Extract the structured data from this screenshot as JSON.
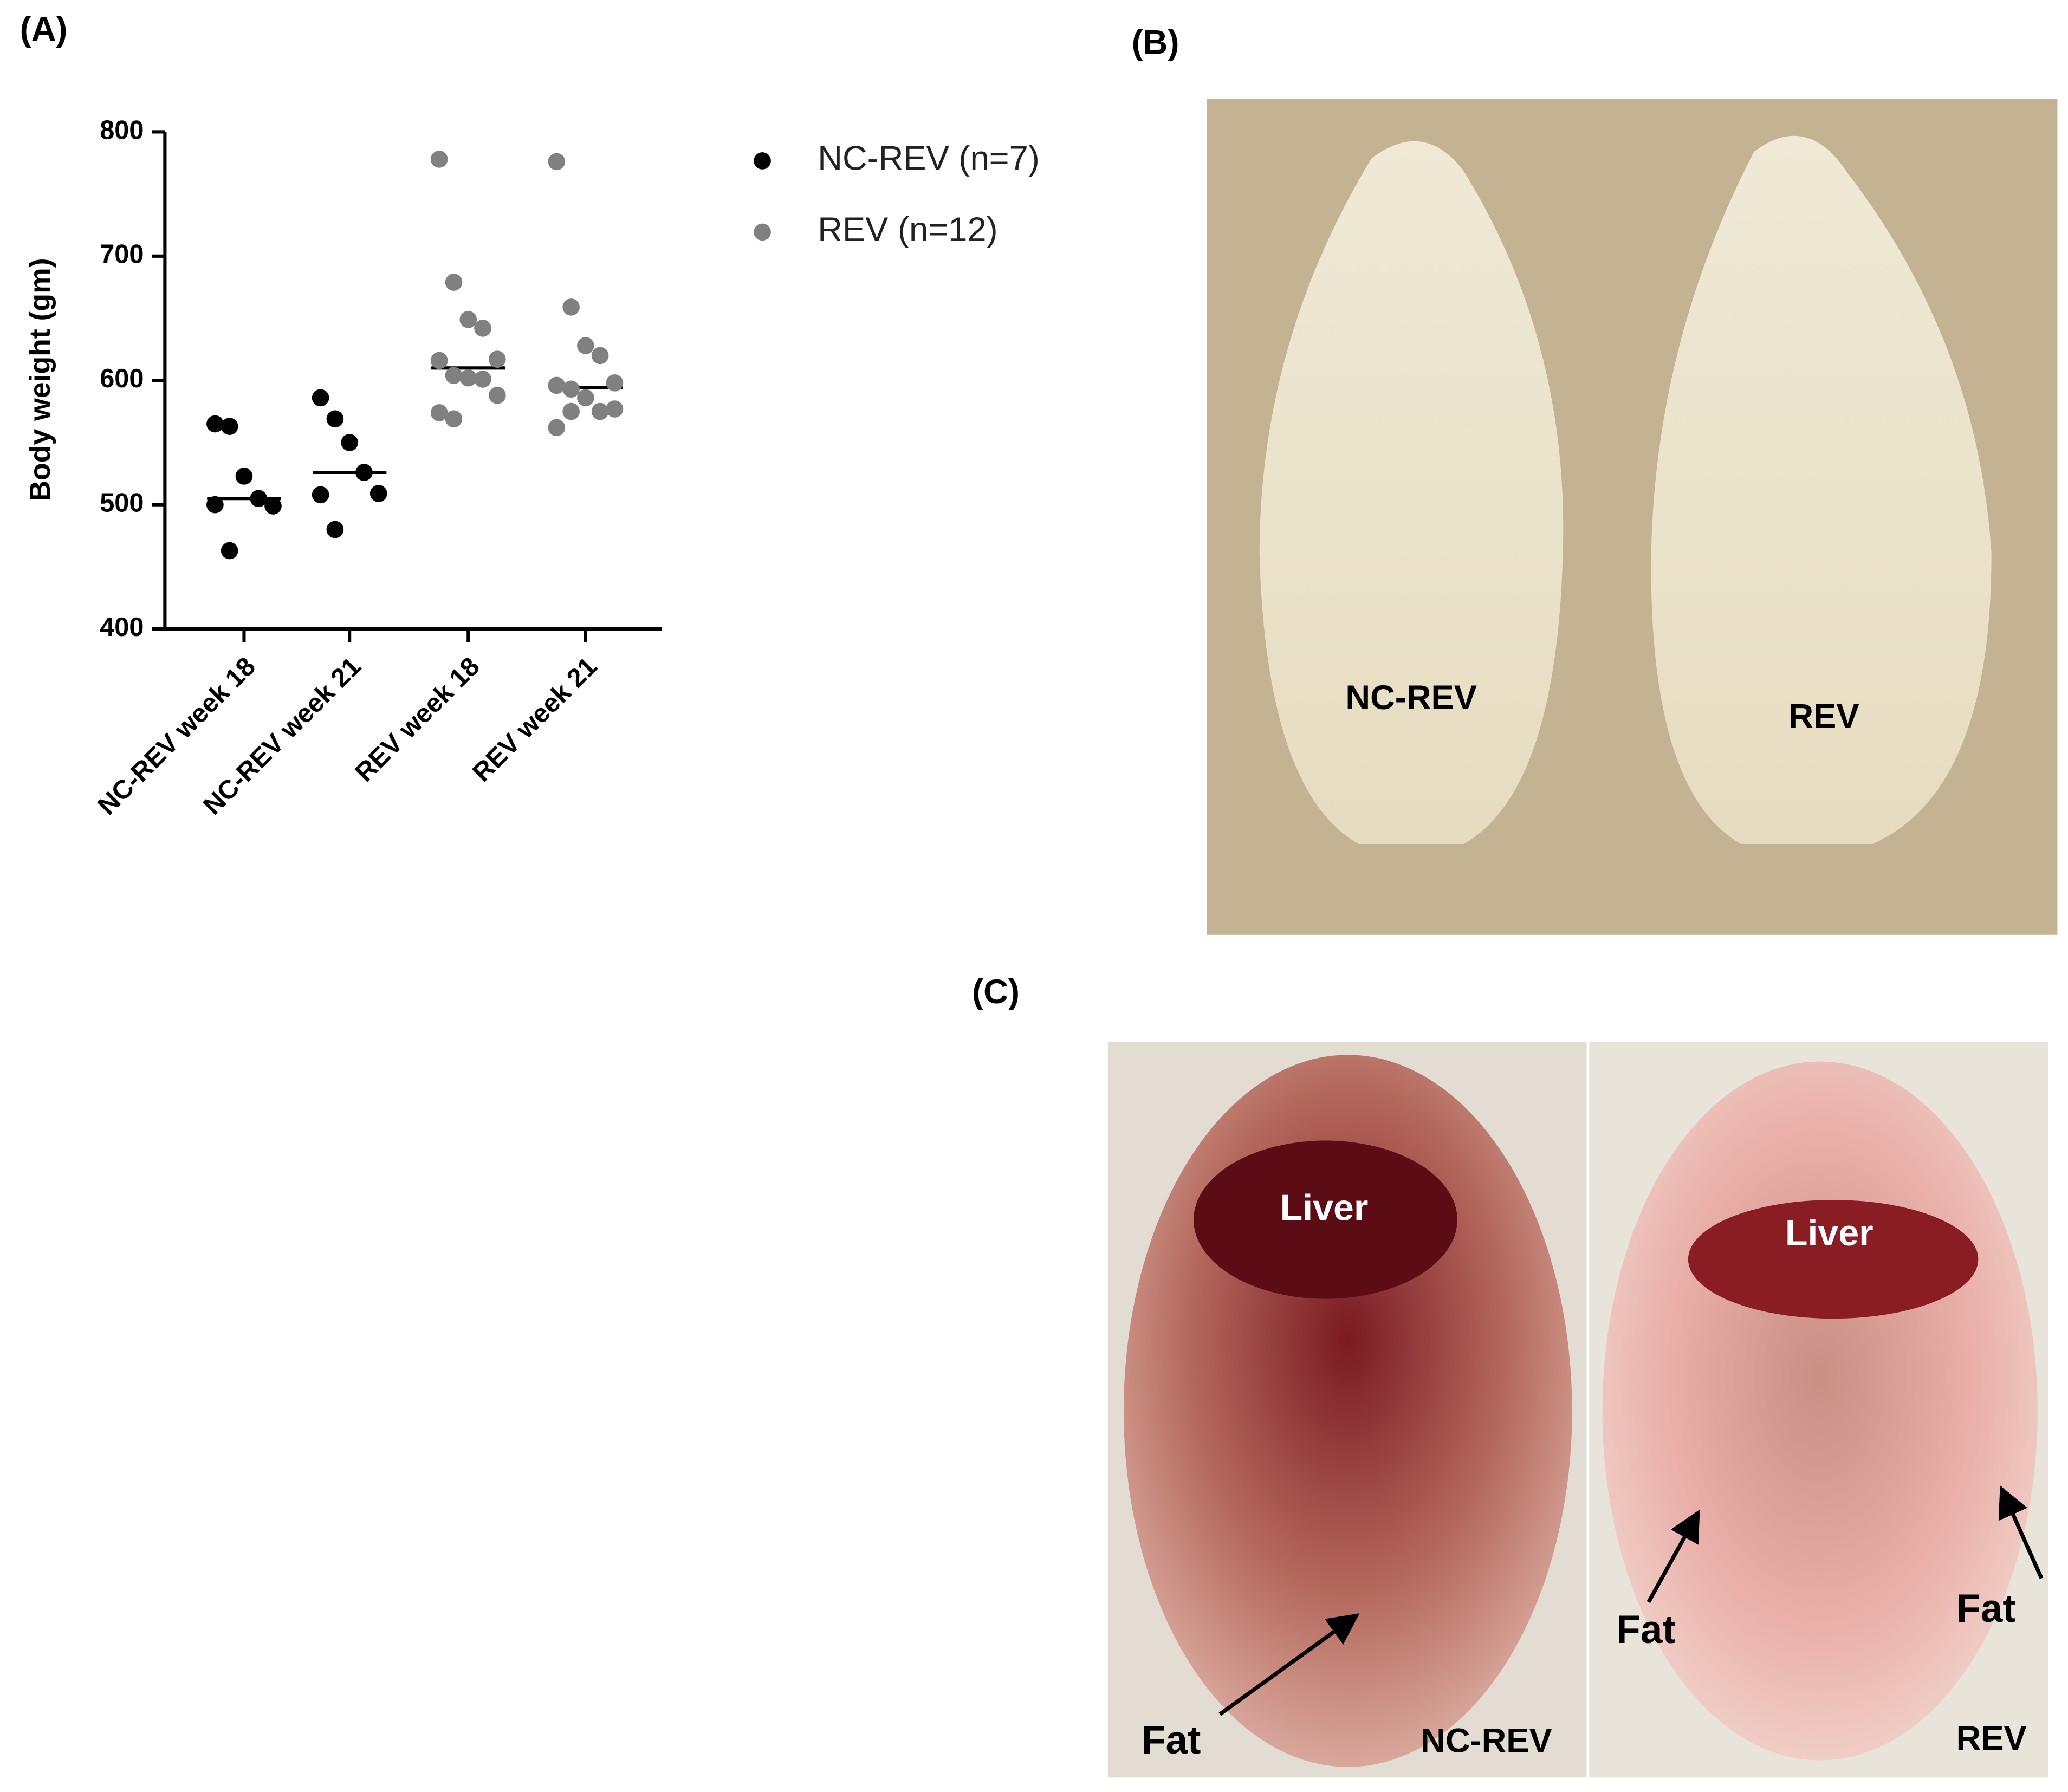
{
  "chart_data": {
    "type": "dot",
    "y_label": "Body weight (gm)",
    "categories": [
      "NC-REV week 18",
      "NC-REV week 21",
      "REV week 18",
      "REV week 21"
    ],
    "series": [
      {
        "name": "NC-REV (n=7)",
        "color": "#000000",
        "values": [
          [
            565,
            563,
            523,
            505,
            499,
            500,
            463
          ],
          [
            586,
            569,
            550,
            526,
            509,
            508,
            480
          ],
          null,
          null
        ]
      },
      {
        "name": "REV (n=12)",
        "color": "#808080",
        "values": [
          null,
          null,
          [
            778,
            679,
            649,
            642,
            617,
            616,
            604,
            602,
            601,
            588,
            574,
            569
          ],
          [
            776,
            659,
            628,
            620,
            598,
            596,
            593,
            586,
            575,
            577,
            562,
            575
          ]
        ]
      }
    ],
    "medians": [
      505,
      526,
      610,
      594
    ],
    "ylim": [
      400,
      800
    ],
    "yticks": [
      400,
      500,
      600,
      700,
      800
    ]
  },
  "panel_labels": [
    "(A)",
    "(B)",
    "(C)"
  ],
  "photo_b": {
    "labels": [
      "NC-REV",
      "REV"
    ]
  },
  "photo_c": {
    "left": {
      "organ": "Liver",
      "fat": "Fat",
      "group": "NC-REV"
    },
    "right": {
      "organ": "Liver",
      "fat": [
        "Fat",
        "Fat"
      ],
      "group": "REV"
    }
  }
}
